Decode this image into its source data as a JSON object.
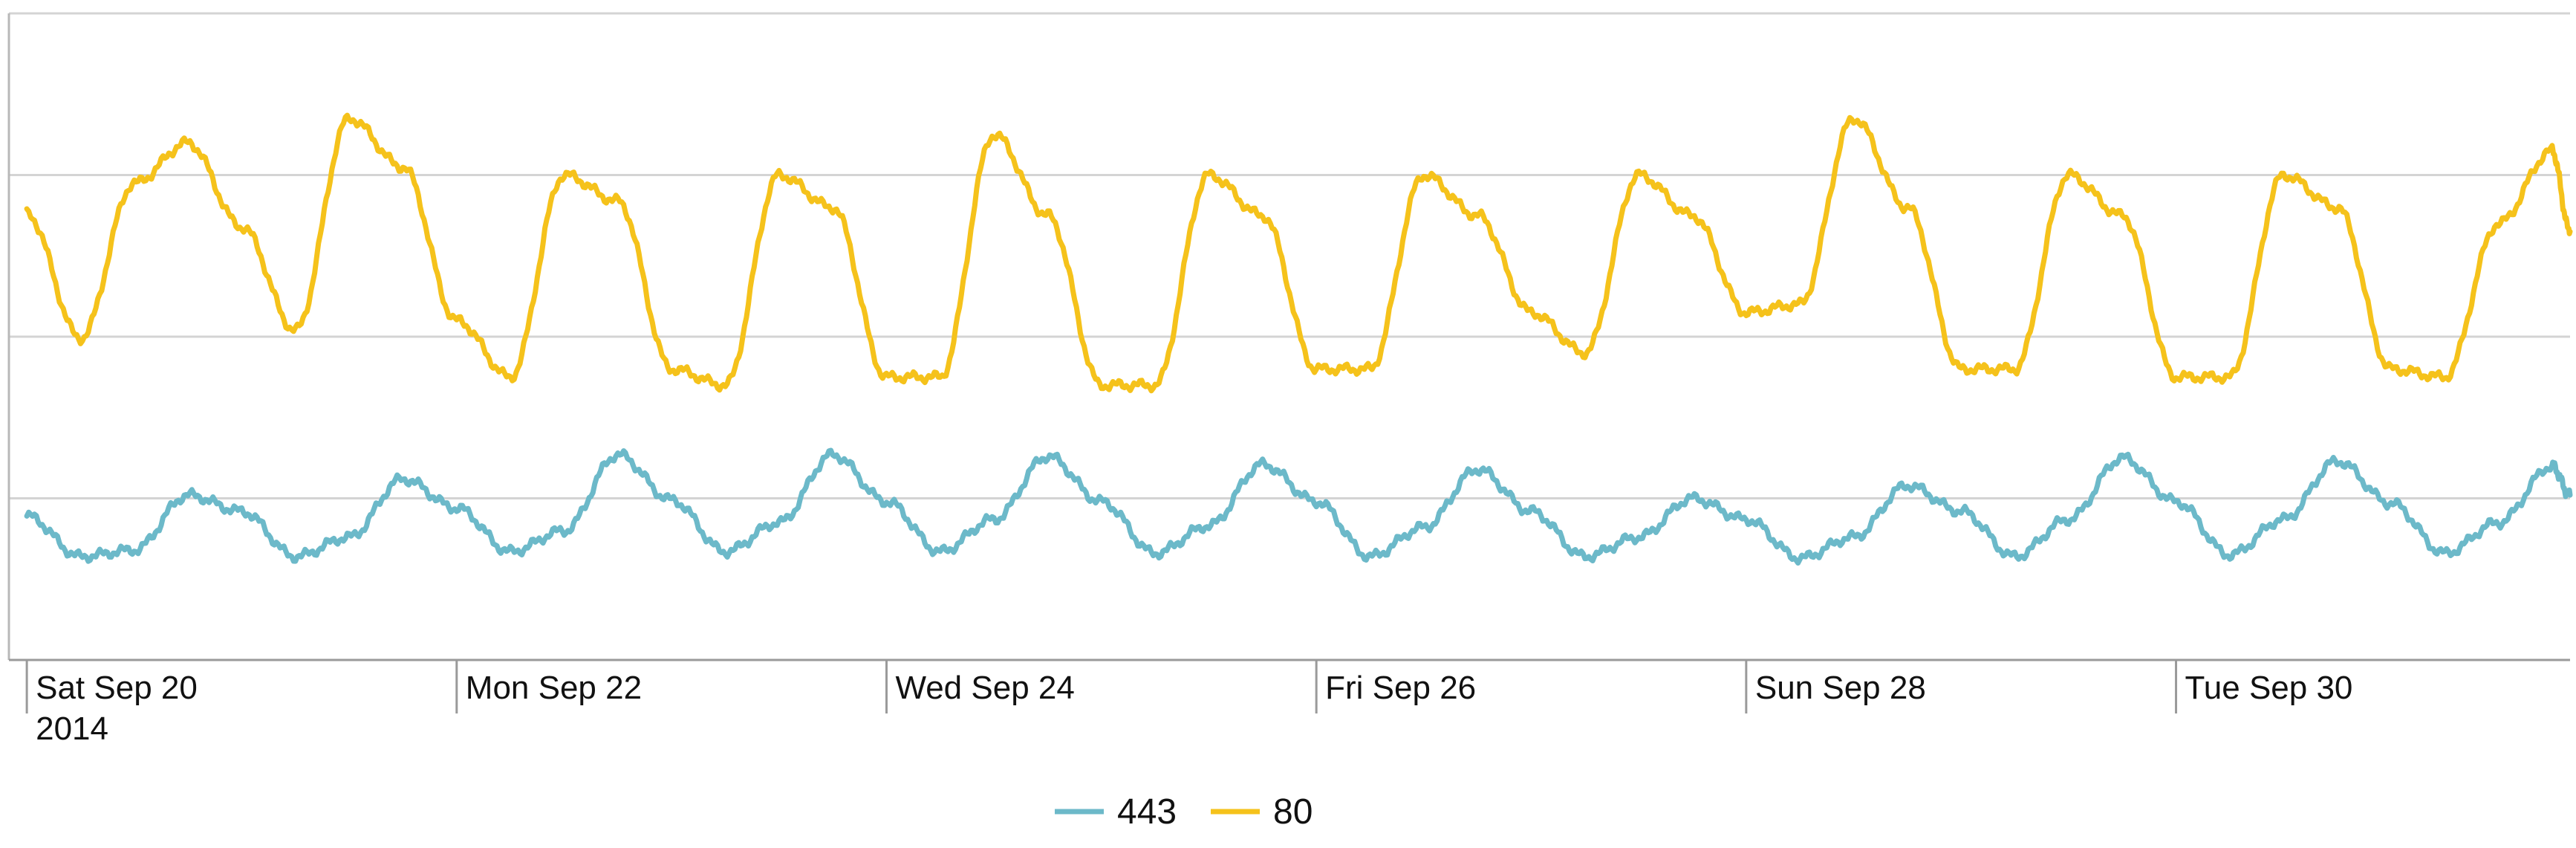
{
  "chart_data": {
    "type": "line",
    "title": "",
    "xlabel": "",
    "ylabel": "",
    "x_range": [
      "2014-09-19 22:00",
      "2014-10-01 20:00"
    ],
    "y_range": [
      0,
      4
    ],
    "y_gridlines": [
      1,
      2,
      3,
      4
    ],
    "grid": true,
    "x_ticks": [
      {
        "date": "2014-09-20",
        "label": "Sat Sep 20",
        "sublabel": "2014"
      },
      {
        "date": "2014-09-22",
        "label": "Mon Sep 22",
        "sublabel": ""
      },
      {
        "date": "2014-09-24",
        "label": "Wed Sep 24",
        "sublabel": ""
      },
      {
        "date": "2014-09-26",
        "label": "Fri Sep 26",
        "sublabel": ""
      },
      {
        "date": "2014-09-28",
        "label": "Sun Sep 28",
        "sublabel": ""
      },
      {
        "date": "2014-09-30",
        "label": "Tue Sep 30",
        "sublabel": ""
      }
    ],
    "legend_position": "bottom-center",
    "series": [
      {
        "name": "443",
        "color": "#6cb9c9",
        "points": [
          [
            "2014-09-20 00:00",
            0.89
          ],
          [
            "2014-09-20 06:00",
            0.64
          ],
          [
            "2014-09-20 12:00",
            0.68
          ],
          [
            "2014-09-20 18:00",
            1.02
          ],
          [
            "2014-09-21 00:00",
            0.92
          ],
          [
            "2014-09-21 06:00",
            0.64
          ],
          [
            "2014-09-21 12:00",
            0.76
          ],
          [
            "2014-09-21 18:00",
            1.12
          ],
          [
            "2014-09-22 00:00",
            0.94
          ],
          [
            "2014-09-22 06:00",
            0.67
          ],
          [
            "2014-09-22 12:00",
            0.8
          ],
          [
            "2014-09-22 18:00",
            1.27
          ],
          [
            "2014-09-23 00:00",
            0.99
          ],
          [
            "2014-09-23 06:00",
            0.67
          ],
          [
            "2014-09-23 12:00",
            0.85
          ],
          [
            "2014-09-23 18:00",
            1.27
          ],
          [
            "2014-09-24 00:00",
            0.98
          ],
          [
            "2014-09-24 06:00",
            0.67
          ],
          [
            "2014-09-24 12:00",
            0.87
          ],
          [
            "2014-09-24 18:00",
            1.26
          ],
          [
            "2014-09-25 00:00",
            0.98
          ],
          [
            "2014-09-25 06:00",
            0.66
          ],
          [
            "2014-09-25 12:00",
            0.83
          ],
          [
            "2014-09-25 18:00",
            1.21
          ],
          [
            "2014-09-26 00:00",
            0.98
          ],
          [
            "2014-09-26 06:00",
            0.64
          ],
          [
            "2014-09-26 12:00",
            0.82
          ],
          [
            "2014-09-26 18:00",
            1.18
          ],
          [
            "2014-09-27 00:00",
            0.92
          ],
          [
            "2014-09-27 06:00",
            0.64
          ],
          [
            "2014-09-27 12:00",
            0.76
          ],
          [
            "2014-09-27 18:00",
            1.0
          ],
          [
            "2014-09-28 00:00",
            0.87
          ],
          [
            "2014-09-28 06:00",
            0.63
          ],
          [
            "2014-09-28 12:00",
            0.76
          ],
          [
            "2014-09-28 18:00",
            1.08
          ],
          [
            "2014-09-29 00:00",
            0.92
          ],
          [
            "2014-09-29 06:00",
            0.64
          ],
          [
            "2014-09-29 12:00",
            0.87
          ],
          [
            "2014-09-29 18:00",
            1.25
          ],
          [
            "2014-09-30 00:00",
            0.98
          ],
          [
            "2014-09-30 06:00",
            0.65
          ],
          [
            "2014-09-30 12:00",
            0.87
          ],
          [
            "2014-09-30 18:00",
            1.23
          ],
          [
            "2014-10-01 00:00",
            0.97
          ],
          [
            "2014-10-01 06:00",
            0.66
          ],
          [
            "2014-10-01 12:00",
            0.85
          ],
          [
            "2014-10-01 18:00",
            1.2
          ],
          [
            "2014-10-01 20:00",
            1.02
          ]
        ]
      },
      {
        "name": "80",
        "color": "#f5c21b",
        "points": [
          [
            "2014-09-20 00:00",
            2.76
          ],
          [
            "2014-09-20 06:00",
            1.99
          ],
          [
            "2014-09-20 12:00",
            2.95
          ],
          [
            "2014-09-20 18:00",
            3.2
          ],
          [
            "2014-09-21 00:00",
            2.68
          ],
          [
            "2014-09-21 06:00",
            2.04
          ],
          [
            "2014-09-21 12:00",
            3.35
          ],
          [
            "2014-09-21 18:00",
            3.05
          ],
          [
            "2014-09-22 00:00",
            2.1
          ],
          [
            "2014-09-22 06:00",
            1.75
          ],
          [
            "2014-09-22 12:00",
            3.0
          ],
          [
            "2014-09-22 18:00",
            2.84
          ],
          [
            "2014-09-23 00:00",
            1.8
          ],
          [
            "2014-09-23 06:00",
            1.7
          ],
          [
            "2014-09-23 12:00",
            3.0
          ],
          [
            "2014-09-23 18:00",
            2.8
          ],
          [
            "2014-09-24 00:00",
            1.75
          ],
          [
            "2014-09-24 06:00",
            1.75
          ],
          [
            "2014-09-24 12:00",
            3.25
          ],
          [
            "2014-09-24 18:00",
            2.75
          ],
          [
            "2014-09-25 00:00",
            1.7
          ],
          [
            "2014-09-25 06:00",
            1.7
          ],
          [
            "2014-09-25 12:00",
            3.0
          ],
          [
            "2014-09-25 18:00",
            2.75
          ],
          [
            "2014-09-26 00:00",
            1.8
          ],
          [
            "2014-09-26 06:00",
            1.8
          ],
          [
            "2014-09-26 12:00",
            3.0
          ],
          [
            "2014-09-26 18:00",
            2.75
          ],
          [
            "2014-09-27 00:00",
            2.15
          ],
          [
            "2014-09-27 06:00",
            1.9
          ],
          [
            "2014-09-27 12:00",
            3.0
          ],
          [
            "2014-09-27 18:00",
            2.75
          ],
          [
            "2014-09-28 00:00",
            2.15
          ],
          [
            "2014-09-28 06:00",
            2.2
          ],
          [
            "2014-09-28 12:00",
            3.35
          ],
          [
            "2014-09-28 18:00",
            2.8
          ],
          [
            "2014-09-29 00:00",
            1.8
          ],
          [
            "2014-09-29 06:00",
            1.8
          ],
          [
            "2014-09-29 12:00",
            3.0
          ],
          [
            "2014-09-29 18:00",
            2.75
          ],
          [
            "2014-09-30 00:00",
            1.75
          ],
          [
            "2014-09-30 06:00",
            1.75
          ],
          [
            "2014-09-30 12:00",
            3.0
          ],
          [
            "2014-09-30 18:00",
            2.8
          ],
          [
            "2014-10-01 00:00",
            1.8
          ],
          [
            "2014-10-01 06:00",
            1.75
          ],
          [
            "2014-10-01 12:00",
            2.7
          ],
          [
            "2014-10-01 18:00",
            3.15
          ],
          [
            "2014-10-01 20:00",
            2.65
          ]
        ]
      }
    ]
  }
}
